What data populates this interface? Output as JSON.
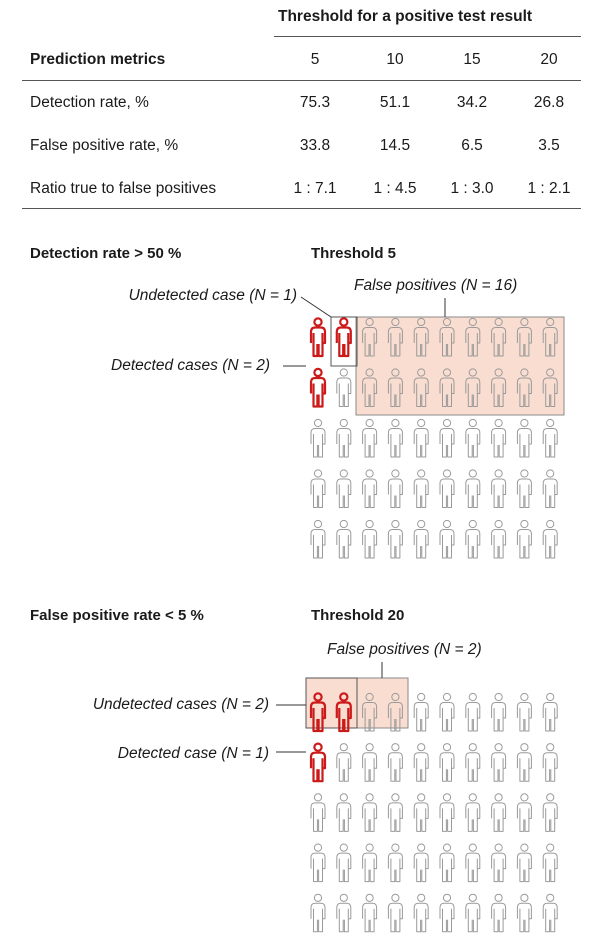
{
  "table": {
    "column_group_header": "Threshold for a positive test result",
    "row_header": "Prediction metrics",
    "thresholds": [
      "5",
      "10",
      "15",
      "20"
    ],
    "rows": [
      {
        "label": "Detection rate, %",
        "values": [
          "75.3",
          "51.1",
          "34.2",
          "26.8"
        ]
      },
      {
        "label": "False positive rate, %",
        "values": [
          "33.8",
          "14.5",
          "6.5",
          "3.5"
        ]
      },
      {
        "label": "Ratio true to false positives",
        "values": [
          "1 : 7.1",
          "1 : 4.5",
          "1 : 3.0",
          "1 : 2.1"
        ]
      }
    ]
  },
  "panels": [
    {
      "criterion": "Detection rate > 50 %",
      "threshold_label": "Threshold 5",
      "undetected_label": "Undetected case (N = 1)",
      "detected_label": "Detected cases (N = 2)",
      "false_pos_label": "False positives (N = 16)",
      "grid": {
        "rows": 5,
        "cols": 10,
        "red": [
          [
            0,
            0
          ],
          [
            0,
            1
          ],
          [
            1,
            0
          ]
        ],
        "highlight_positive": [
          [
            0,
            1
          ],
          [
            0,
            2
          ],
          [
            0,
            3
          ],
          [
            0,
            4
          ],
          [
            0,
            5
          ],
          [
            0,
            6
          ],
          [
            0,
            7
          ],
          [
            0,
            8
          ],
          [
            0,
            9
          ],
          [
            1,
            2
          ],
          [
            1,
            3
          ],
          [
            1,
            4
          ],
          [
            1,
            5
          ],
          [
            1,
            6
          ],
          [
            1,
            7
          ],
          [
            1,
            8
          ],
          [
            1,
            9
          ]
        ]
      }
    },
    {
      "criterion": "False positive rate < 5 %",
      "threshold_label": "Threshold 20",
      "undetected_label": "Undetected cases (N = 2)",
      "detected_label": "Detected case (N = 1)",
      "false_pos_label": "False positives (N = 2)",
      "grid": {
        "rows": 5,
        "cols": 10,
        "red": [
          [
            0,
            0
          ],
          [
            0,
            1
          ],
          [
            1,
            0
          ]
        ],
        "highlight_positive": [
          [
            0,
            0
          ],
          [
            0,
            1
          ],
          [
            0,
            2
          ],
          [
            0,
            3
          ]
        ]
      }
    }
  ],
  "colors": {
    "case_red": "#cc1a1a",
    "highlight_fill": "#f9ddd0",
    "outline_gray": "#9a9a9a",
    "box_stroke": "#8a8a8a",
    "text": "#1a1a1a"
  }
}
